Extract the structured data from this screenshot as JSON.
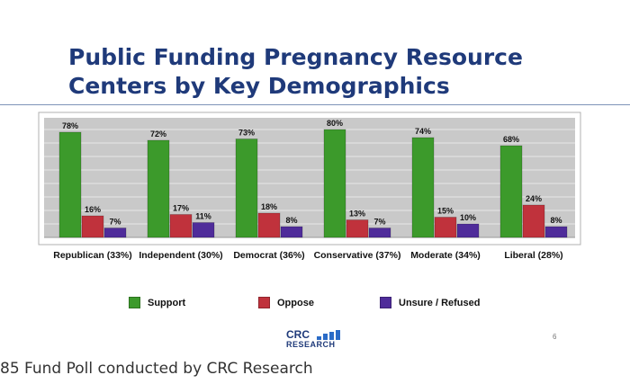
{
  "title": "Public Funding Pregnancy Resource Centers by Key Demographics",
  "colors": {
    "support": "#3c9a2b",
    "oppose": "#c0323c",
    "unsure": "#4f2c9a",
    "plot_bg": "#c9c9c9"
  },
  "chart_data": {
    "type": "bar",
    "title": "",
    "categories": [
      "Republican (33%)",
      "Independent (30%)",
      "Democrat (36%)",
      "Conservative (37%)",
      "Moderate (34%)",
      "Liberal (28%)"
    ],
    "series": [
      {
        "name": "Support",
        "values": [
          78,
          72,
          73,
          80,
          74,
          68
        ],
        "labels": [
          "78%",
          "72%",
          "73%",
          "80%",
          "74%",
          "68%"
        ]
      },
      {
        "name": "Oppose",
        "values": [
          16,
          17,
          18,
          13,
          15,
          24
        ],
        "labels": [
          "16%",
          "17%",
          "18%",
          "13%",
          "15%",
          "24%"
        ]
      },
      {
        "name": "Unsure / Refused",
        "values": [
          7,
          11,
          8,
          7,
          10,
          8
        ],
        "labels": [
          "7%",
          "11%",
          "8%",
          "7%",
          "10%",
          "8%"
        ]
      }
    ],
    "ylim": [
      0,
      100
    ],
    "grid": true,
    "legend": "bottom"
  },
  "logo": {
    "line1": "CRC",
    "line2": "RESEARCH"
  },
  "page_number": "6",
  "footer": "85 Fund Poll conducted by CRC Research"
}
